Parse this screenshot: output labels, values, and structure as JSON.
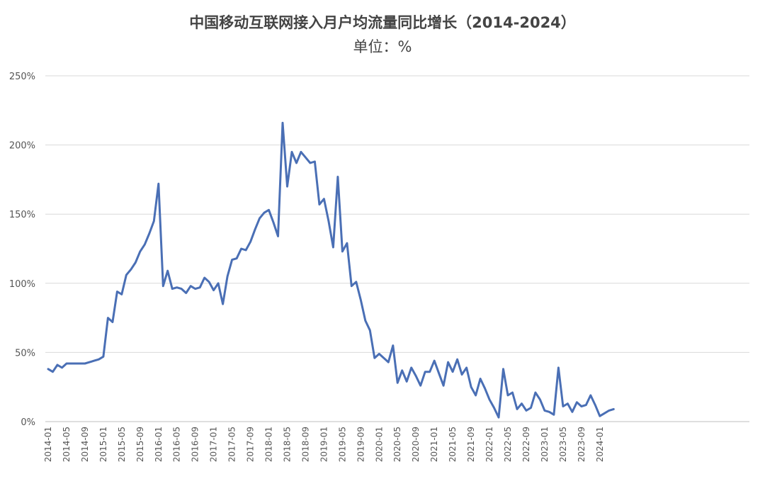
{
  "chart_data": {
    "type": "line",
    "title": "中国移动互联网接入月户均流量同比增长（2014-2024）",
    "subtitle": "单位：%",
    "xlabel": "",
    "ylabel": "",
    "ylim": [
      0,
      250
    ],
    "y_ticks": [
      "0%",
      "50%",
      "100%",
      "150%",
      "200%",
      "250%"
    ],
    "y_tick_values": [
      0,
      50,
      100,
      150,
      200,
      250
    ],
    "grid": true,
    "legend": "none",
    "line_color": "#4a6fb5",
    "x_tick_labels": [
      "2014-01",
      "2014-05",
      "2014-09",
      "2015-01",
      "2015-05",
      "2015-09",
      "2016-01",
      "2016-05",
      "2016-09",
      "2017-01",
      "2017-05",
      "2017-09",
      "2018-01",
      "2018-05",
      "2018-09",
      "2019-01",
      "2019-05",
      "2019-09",
      "2020-01",
      "2020-05",
      "2020-09",
      "2021-01",
      "2021-05",
      "2021-09",
      "2022-01",
      "2022-05",
      "2022-09",
      "2023-01",
      "2023-05",
      "2023-09",
      "2024-01"
    ],
    "x": [
      "2014-01",
      "2014-02",
      "2014-03",
      "2014-04",
      "2014-05",
      "2014-06",
      "2014-07",
      "2014-08",
      "2014-09",
      "2014-10",
      "2014-11",
      "2014-12",
      "2015-01",
      "2015-02",
      "2015-03",
      "2015-04",
      "2015-05",
      "2015-06",
      "2015-07",
      "2015-08",
      "2015-09",
      "2015-10",
      "2015-11",
      "2015-12",
      "2016-01",
      "2016-02",
      "2016-03",
      "2016-04",
      "2016-05",
      "2016-06",
      "2016-07",
      "2016-08",
      "2016-09",
      "2016-10",
      "2016-11",
      "2016-12",
      "2017-01",
      "2017-02",
      "2017-03",
      "2017-04",
      "2017-05",
      "2017-06",
      "2017-07",
      "2017-08",
      "2017-09",
      "2017-10",
      "2017-11",
      "2017-12",
      "2018-01",
      "2018-02",
      "2018-03",
      "2018-04",
      "2018-05",
      "2018-06",
      "2018-07",
      "2018-08",
      "2018-09",
      "2018-10",
      "2018-11",
      "2018-12",
      "2019-01",
      "2019-02",
      "2019-03",
      "2019-04",
      "2019-05",
      "2019-06",
      "2019-07",
      "2019-08",
      "2019-09",
      "2019-10",
      "2019-11",
      "2019-12",
      "2020-01",
      "2020-02",
      "2020-03",
      "2020-04",
      "2020-05",
      "2020-06",
      "2020-07",
      "2020-08",
      "2020-09",
      "2020-10",
      "2020-11",
      "2020-12",
      "2021-01",
      "2021-02",
      "2021-03",
      "2021-04",
      "2021-05",
      "2021-06",
      "2021-07",
      "2021-08",
      "2021-09",
      "2021-10",
      "2021-11",
      "2021-12",
      "2022-01",
      "2022-02",
      "2022-03",
      "2022-04",
      "2022-05",
      "2022-06",
      "2022-07",
      "2022-08",
      "2022-09",
      "2022-10",
      "2022-11",
      "2022-12",
      "2023-01",
      "2023-02",
      "2023-03",
      "2023-04",
      "2023-05",
      "2023-06",
      "2023-07",
      "2023-08",
      "2023-09",
      "2023-10",
      "2023-11",
      "2023-12",
      "2024-01",
      "2024-02",
      "2024-03",
      "2024-04"
    ],
    "values": [
      38,
      36,
      41,
      39,
      42,
      42,
      42,
      42,
      42,
      43,
      44,
      45,
      47,
      75,
      72,
      94,
      92,
      106,
      110,
      115,
      123,
      128,
      136,
      145,
      172,
      98,
      109,
      96,
      97,
      96,
      93,
      98,
      96,
      97,
      104,
      101,
      95,
      100,
      85,
      105,
      117,
      118,
      125,
      124,
      130,
      139,
      147,
      151,
      153,
      144,
      134,
      216,
      170,
      195,
      187,
      195,
      191,
      187,
      188,
      157,
      161,
      145,
      126,
      177,
      123,
      129,
      98,
      101,
      88,
      73,
      66,
      46,
      49,
      46,
      43,
      55,
      28,
      37,
      29,
      39,
      33,
      26,
      36,
      36,
      44,
      35,
      26,
      43,
      36,
      45,
      34,
      39,
      25,
      19,
      31,
      24,
      16,
      10,
      3,
      38,
      19,
      21,
      9,
      13,
      8,
      10,
      21,
      16,
      8,
      7,
      5,
      39,
      11,
      13,
      7,
      14,
      11,
      12,
      19,
      12,
      4,
      6,
      8,
      9
    ]
  }
}
